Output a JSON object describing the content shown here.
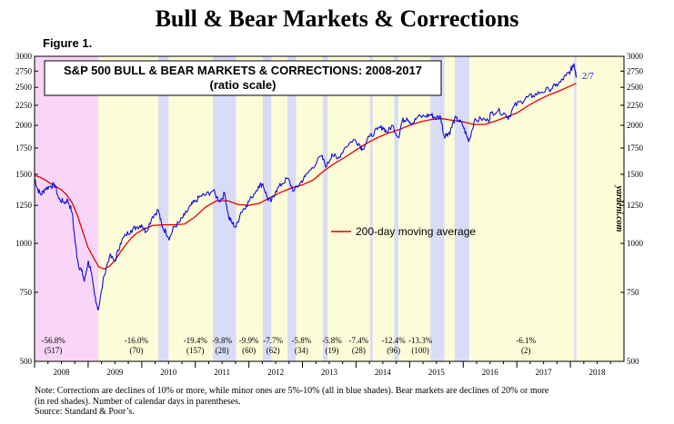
{
  "page": {
    "title": "Bull & Bear Markets & Corrections",
    "figure_label": "Figure 1.",
    "note_lines": [
      "Note: Corrections are declines of 10% or more, while minor ones are 5%-10% (all in blue shades).  Bear markets are declines of 20% or more",
      "(in red shades). Number of calendar days in parentheses.",
      "Source: Standard & Poor’s."
    ],
    "watermark": "yardeni.com"
  },
  "colors": {
    "sp500": "#1010d8",
    "ma": "#e00000",
    "bull_shade": "#fdfcd8",
    "bear_shade": "#f9d6f7",
    "correction_shade": "#d9dcf6"
  },
  "chart_data": {
    "type": "line",
    "title_line1": "S&P 500 BULL & BEAR MARKETS & CORRECTIONS: 2008-2017",
    "title_line2": "(ratio scale)",
    "y_scale": "log",
    "ylim": [
      500,
      3000
    ],
    "y_ticks": [
      500,
      750,
      1000,
      1250,
      1500,
      1750,
      2000,
      2250,
      2500,
      2750,
      3000
    ],
    "x_ticks": [
      "2008",
      "2009",
      "2010",
      "2011",
      "2012",
      "2013",
      "2014",
      "2015",
      "2016",
      "2017",
      "2018"
    ],
    "xlim": [
      2008.0,
      2019.0
    ],
    "series": [
      {
        "name": "S&P 500",
        "end_label": "2/7",
        "points": [
          [
            2008.0,
            1468
          ],
          [
            2008.05,
            1380
          ],
          [
            2008.12,
            1330
          ],
          [
            2008.2,
            1380
          ],
          [
            2008.3,
            1400
          ],
          [
            2008.38,
            1410
          ],
          [
            2008.45,
            1300
          ],
          [
            2008.55,
            1270
          ],
          [
            2008.62,
            1290
          ],
          [
            2008.7,
            1200
          ],
          [
            2008.76,
            1000
          ],
          [
            2008.82,
            880
          ],
          [
            2008.88,
            850
          ],
          [
            2008.93,
            800
          ],
          [
            2009.0,
            900
          ],
          [
            2009.05,
            850
          ],
          [
            2009.12,
            740
          ],
          [
            2009.19,
            676
          ],
          [
            2009.3,
            830
          ],
          [
            2009.4,
            930
          ],
          [
            2009.5,
            900
          ],
          [
            2009.6,
            1000
          ],
          [
            2009.7,
            1050
          ],
          [
            2009.8,
            1080
          ],
          [
            2009.9,
            1100
          ],
          [
            2010.0,
            1115
          ],
          [
            2010.08,
            1070
          ],
          [
            2010.2,
            1170
          ],
          [
            2010.31,
            1217
          ],
          [
            2010.38,
            1100
          ],
          [
            2010.45,
            1070
          ],
          [
            2010.52,
            1030
          ],
          [
            2010.6,
            1100
          ],
          [
            2010.7,
            1130
          ],
          [
            2010.8,
            1180
          ],
          [
            2010.92,
            1250
          ],
          [
            2011.0,
            1280
          ],
          [
            2011.1,
            1320
          ],
          [
            2011.2,
            1330
          ],
          [
            2011.33,
            1363
          ],
          [
            2011.45,
            1280
          ],
          [
            2011.55,
            1340
          ],
          [
            2011.62,
            1170
          ],
          [
            2011.68,
            1130
          ],
          [
            2011.76,
            1099
          ],
          [
            2011.85,
            1200
          ],
          [
            2011.95,
            1250
          ],
          [
            2012.05,
            1310
          ],
          [
            2012.18,
            1400
          ],
          [
            2012.26,
            1419
          ],
          [
            2012.35,
            1300
          ],
          [
            2012.42,
            1280
          ],
          [
            2012.5,
            1360
          ],
          [
            2012.62,
            1420
          ],
          [
            2012.72,
            1465
          ],
          [
            2012.84,
            1360
          ],
          [
            2012.95,
            1420
          ],
          [
            2013.05,
            1480
          ],
          [
            2013.18,
            1560
          ],
          [
            2013.35,
            1670
          ],
          [
            2013.45,
            1570
          ],
          [
            2013.55,
            1690
          ],
          [
            2013.65,
            1640
          ],
          [
            2013.8,
            1760
          ],
          [
            2013.95,
            1840
          ],
          [
            2014.05,
            1800
          ],
          [
            2014.12,
            1740
          ],
          [
            2014.25,
            1870
          ],
          [
            2014.4,
            1950
          ],
          [
            2014.5,
            1980
          ],
          [
            2014.58,
            1920
          ],
          [
            2014.68,
            2000
          ],
          [
            2014.79,
            1860
          ],
          [
            2014.86,
            2050
          ],
          [
            2014.95,
            2090
          ],
          [
            2015.05,
            2020
          ],
          [
            2015.15,
            2100
          ],
          [
            2015.3,
            2110
          ],
          [
            2015.39,
            2130
          ],
          [
            2015.48,
            2090
          ],
          [
            2015.58,
            2100
          ],
          [
            2015.64,
            1880
          ],
          [
            2015.7,
            1900
          ],
          [
            2015.76,
            1930
          ],
          [
            2015.84,
            2080
          ],
          [
            2015.92,
            2060
          ],
          [
            2016.0,
            1990
          ],
          [
            2016.07,
            1870
          ],
          [
            2016.11,
            1829
          ],
          [
            2016.2,
            2040
          ],
          [
            2016.33,
            2080
          ],
          [
            2016.47,
            2050
          ],
          [
            2016.52,
            2150
          ],
          [
            2016.65,
            2180
          ],
          [
            2016.78,
            2140
          ],
          [
            2016.85,
            2090
          ],
          [
            2016.95,
            2240
          ],
          [
            2017.08,
            2300
          ],
          [
            2017.2,
            2360
          ],
          [
            2017.3,
            2380
          ],
          [
            2017.45,
            2430
          ],
          [
            2017.6,
            2470
          ],
          [
            2017.72,
            2520
          ],
          [
            2017.82,
            2580
          ],
          [
            2017.92,
            2680
          ],
          [
            2018.0,
            2750
          ],
          [
            2018.05,
            2850
          ],
          [
            2018.07,
            2872
          ],
          [
            2018.09,
            2760
          ],
          [
            2018.11,
            2681
          ]
        ]
      },
      {
        "name": "200-day moving average",
        "points": [
          [
            2008.0,
            1490
          ],
          [
            2008.1,
            1475
          ],
          [
            2008.2,
            1450
          ],
          [
            2008.3,
            1420
          ],
          [
            2008.4,
            1395
          ],
          [
            2008.5,
            1370
          ],
          [
            2008.6,
            1330
          ],
          [
            2008.7,
            1270
          ],
          [
            2008.8,
            1180
          ],
          [
            2008.9,
            1070
          ],
          [
            2009.0,
            975
          ],
          [
            2009.1,
            920
          ],
          [
            2009.2,
            870
          ],
          [
            2009.3,
            860
          ],
          [
            2009.4,
            875
          ],
          [
            2009.5,
            905
          ],
          [
            2009.6,
            950
          ],
          [
            2009.7,
            990
          ],
          [
            2009.8,
            1030
          ],
          [
            2009.9,
            1060
          ],
          [
            2010.0,
            1080
          ],
          [
            2010.2,
            1110
          ],
          [
            2010.4,
            1115
          ],
          [
            2010.6,
            1115
          ],
          [
            2010.8,
            1120
          ],
          [
            2011.0,
            1170
          ],
          [
            2011.2,
            1240
          ],
          [
            2011.4,
            1285
          ],
          [
            2011.6,
            1285
          ],
          [
            2011.8,
            1255
          ],
          [
            2012.0,
            1250
          ],
          [
            2012.2,
            1265
          ],
          [
            2012.4,
            1310
          ],
          [
            2012.6,
            1350
          ],
          [
            2012.8,
            1385
          ],
          [
            2013.0,
            1410
          ],
          [
            2013.2,
            1450
          ],
          [
            2013.4,
            1530
          ],
          [
            2013.6,
            1600
          ],
          [
            2013.8,
            1660
          ],
          [
            2014.0,
            1730
          ],
          [
            2014.2,
            1800
          ],
          [
            2014.4,
            1860
          ],
          [
            2014.6,
            1910
          ],
          [
            2014.8,
            1950
          ],
          [
            2015.0,
            2000
          ],
          [
            2015.2,
            2040
          ],
          [
            2015.4,
            2070
          ],
          [
            2015.6,
            2080
          ],
          [
            2015.8,
            2060
          ],
          [
            2016.0,
            2040
          ],
          [
            2016.2,
            2010
          ],
          [
            2016.4,
            2010
          ],
          [
            2016.6,
            2050
          ],
          [
            2016.8,
            2100
          ],
          [
            2017.0,
            2150
          ],
          [
            2017.2,
            2240
          ],
          [
            2017.4,
            2320
          ],
          [
            2017.6,
            2390
          ],
          [
            2017.8,
            2450
          ],
          [
            2018.0,
            2520
          ],
          [
            2018.11,
            2560
          ]
        ]
      }
    ],
    "legend": {
      "label": "200-day moving average",
      "placement": "center-right"
    },
    "shaded_periods": [
      {
        "type": "bear",
        "start": 2007.77,
        "end": 2009.19
      },
      {
        "type": "correction",
        "start": 2010.31,
        "end": 2010.5
      },
      {
        "type": "correction",
        "start": 2011.33,
        "end": 2011.76
      },
      {
        "type": "correction",
        "start": 2012.26,
        "end": 2012.42
      },
      {
        "type": "correction",
        "start": 2012.72,
        "end": 2012.88
      },
      {
        "type": "correction",
        "start": 2013.38,
        "end": 2013.47
      },
      {
        "type": "correction",
        "start": 2014.26,
        "end": 2014.31
      },
      {
        "type": "correction",
        "start": 2014.71,
        "end": 2014.79
      },
      {
        "type": "correction",
        "start": 2015.39,
        "end": 2015.65
      },
      {
        "type": "correction",
        "start": 2015.84,
        "end": 2016.11
      },
      {
        "type": "correction",
        "start": 2018.07,
        "end": 2018.11
      }
    ],
    "annotations": [
      {
        "x": 2008.35,
        "pct": "-56.8%",
        "days": "(517)"
      },
      {
        "x": 2009.9,
        "pct": "-16.0%",
        "days": "(70)"
      },
      {
        "x": 2011.0,
        "pct": "-19.4%",
        "days": "(157)"
      },
      {
        "x": 2011.5,
        "pct": "-9.8%",
        "days": "(28)"
      },
      {
        "x": 2012.0,
        "pct": "-9.9%",
        "days": "(60)"
      },
      {
        "x": 2012.45,
        "pct": "-7.7%",
        "days": "(62)"
      },
      {
        "x": 2012.98,
        "pct": "-5.8%",
        "days": "(34)"
      },
      {
        "x": 2013.55,
        "pct": "-5.8%",
        "days": "(19)"
      },
      {
        "x": 2014.05,
        "pct": "-7.4%",
        "days": "(28)"
      },
      {
        "x": 2014.7,
        "pct": "-12.4%",
        "days": "(96)"
      },
      {
        "x": 2015.2,
        "pct": "-13.3%",
        "days": "(100)"
      },
      {
        "x": 2017.17,
        "pct": "-6.1%",
        "days": "(2)"
      }
    ]
  }
}
